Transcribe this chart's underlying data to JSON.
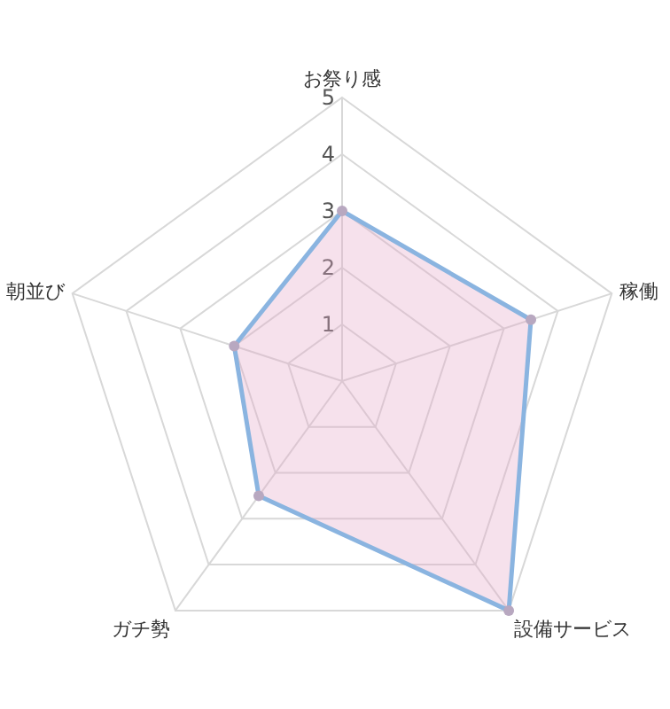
{
  "chart_data": {
    "type": "radar",
    "categories": [
      "お祭り感",
      "稼働",
      "設備サービス",
      "ガチ勢",
      "朝並び"
    ],
    "series": [
      {
        "color": "#8ab4e0",
        "values": [
          3,
          3.5,
          5,
          2.5,
          2
        ]
      }
    ],
    "ylim": [
      0,
      5
    ],
    "yticks": [
      1,
      2,
      3,
      4,
      5
    ],
    "marker": "circle"
  }
}
